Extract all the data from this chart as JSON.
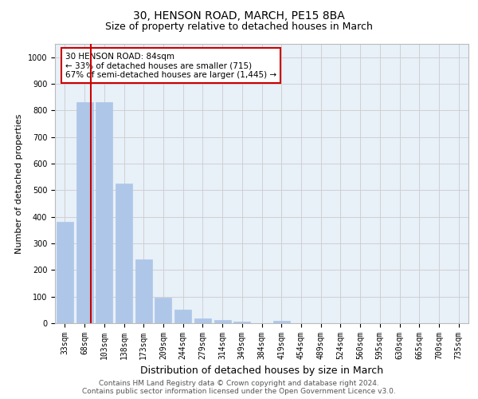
{
  "title": "30, HENSON ROAD, MARCH, PE15 8BA",
  "subtitle": "Size of property relative to detached houses in March",
  "xlabel": "Distribution of detached houses by size in March",
  "ylabel": "Number of detached properties",
  "bar_categories": [
    "33sqm",
    "68sqm",
    "103sqm",
    "138sqm",
    "173sqm",
    "209sqm",
    "244sqm",
    "279sqm",
    "314sqm",
    "349sqm",
    "384sqm",
    "419sqm",
    "454sqm",
    "489sqm",
    "524sqm",
    "560sqm",
    "595sqm",
    "630sqm",
    "665sqm",
    "700sqm",
    "735sqm"
  ],
  "bar_values": [
    380,
    830,
    830,
    525,
    240,
    95,
    50,
    18,
    12,
    5,
    0,
    10,
    0,
    0,
    0,
    0,
    0,
    0,
    0,
    0,
    0
  ],
  "bar_color": "#aec6e8",
  "bar_edgecolor": "#aec6e8",
  "vline_x": 1.33,
  "vline_color": "#cc0000",
  "annotation_box_text": "30 HENSON ROAD: 84sqm\n← 33% of detached houses are smaller (715)\n67% of semi-detached houses are larger (1,445) →",
  "annotation_facecolor": "white",
  "annotation_edgecolor": "#cc0000",
  "ylim": [
    0,
    1050
  ],
  "yticks": [
    0,
    100,
    200,
    300,
    400,
    500,
    600,
    700,
    800,
    900,
    1000
  ],
  "grid_color": "#cccccc",
  "bg_color": "#e8f0f8",
  "footer_line1": "Contains HM Land Registry data © Crown copyright and database right 2024.",
  "footer_line2": "Contains public sector information licensed under the Open Government Licence v3.0.",
  "title_fontsize": 10,
  "subtitle_fontsize": 9,
  "xlabel_fontsize": 9,
  "ylabel_fontsize": 8,
  "tick_fontsize": 7,
  "annotation_fontsize": 7.5,
  "footer_fontsize": 6.5
}
